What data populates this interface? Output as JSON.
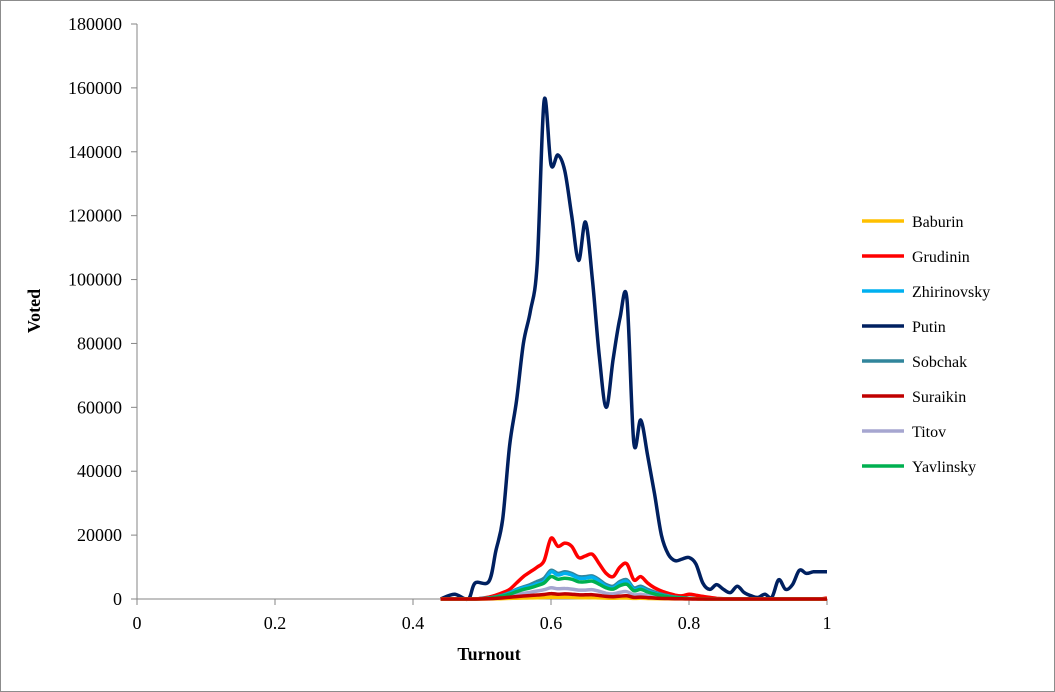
{
  "chart_data": {
    "type": "line",
    "xlabel": "Turnout",
    "ylabel": "Voted",
    "xlim": [
      0,
      1
    ],
    "ylim": [
      0,
      180000
    ],
    "x_ticks": [
      "0",
      "0.2",
      "0.4",
      "0.6",
      "0.8",
      "1"
    ],
    "y_ticks": [
      "0",
      "20000",
      "40000",
      "60000",
      "80000",
      "100000",
      "120000",
      "140000",
      "160000",
      "180000"
    ],
    "grid": false,
    "legend_position": "right",
    "x": [
      0.44,
      0.46,
      0.48,
      0.49,
      0.51,
      0.52,
      0.53,
      0.54,
      0.55,
      0.56,
      0.57,
      0.58,
      0.59,
      0.6,
      0.61,
      0.62,
      0.63,
      0.64,
      0.65,
      0.66,
      0.67,
      0.68,
      0.69,
      0.7,
      0.71,
      0.72,
      0.73,
      0.74,
      0.75,
      0.76,
      0.77,
      0.78,
      0.79,
      0.8,
      0.81,
      0.82,
      0.83,
      0.84,
      0.85,
      0.86,
      0.87,
      0.88,
      0.89,
      0.9,
      0.91,
      0.92,
      0.93,
      0.94,
      0.95,
      0.96,
      0.97,
      0.98,
      0.99,
      1.0
    ],
    "series": [
      {
        "name": "Baburin",
        "color": "#ffc000",
        "values": [
          0,
          0,
          0,
          0,
          20,
          60,
          120,
          200,
          250,
          300,
          360,
          420,
          480,
          560,
          520,
          540,
          500,
          440,
          400,
          420,
          330,
          280,
          220,
          300,
          320,
          200,
          230,
          170,
          130,
          90,
          60,
          40,
          30,
          20,
          20,
          10,
          5,
          0,
          0,
          0,
          0,
          0,
          0,
          0,
          0,
          0,
          0,
          0,
          0,
          0,
          0,
          0,
          0,
          0
        ]
      },
      {
        "name": "Grudinin",
        "color": "#ff0000",
        "values": [
          0,
          0,
          0,
          0,
          600,
          1200,
          2000,
          3000,
          5000,
          7000,
          8500,
          10000,
          12000,
          19000,
          16500,
          17500,
          16500,
          13000,
          13500,
          14000,
          11000,
          8000,
          7000,
          10000,
          11000,
          6000,
          7000,
          5000,
          3500,
          2500,
          1800,
          1200,
          1000,
          1500,
          1200,
          800,
          500,
          200,
          100,
          0,
          0,
          0,
          0,
          0,
          0,
          0,
          0,
          0,
          0,
          0,
          0,
          0,
          0,
          300
        ]
      },
      {
        "name": "Zhirinovsky",
        "color": "#00b0f0",
        "values": [
          0,
          0,
          0,
          0,
          300,
          600,
          1000,
          1800,
          2800,
          3500,
          4000,
          4800,
          5500,
          8500,
          7500,
          8000,
          7500,
          6500,
          6500,
          6800,
          5500,
          4000,
          3500,
          5000,
          5500,
          3000,
          3500,
          2500,
          1800,
          1200,
          800,
          500,
          300,
          200,
          100,
          50,
          0,
          0,
          0,
          0,
          0,
          0,
          0,
          0,
          0,
          0,
          0,
          0,
          0,
          0,
          0,
          0,
          0,
          0
        ]
      },
      {
        "name": "Putin",
        "color": "#002060",
        "values": [
          0,
          1500,
          0,
          5000,
          5500,
          15000,
          25000,
          48000,
          62000,
          80000,
          90000,
          105000,
          156000,
          136000,
          139000,
          134000,
          120000,
          106000,
          118000,
          100000,
          76000,
          60000,
          75000,
          88000,
          94000,
          49000,
          56000,
          45000,
          33000,
          20000,
          14000,
          12000,
          12500,
          13000,
          11000,
          5000,
          3000,
          4500,
          3000,
          2000,
          4000,
          2000,
          1000,
          500,
          1500,
          500,
          6000,
          3000,
          4500,
          9000,
          8000,
          8500,
          8500,
          8500
        ]
      },
      {
        "name": "Sobchak",
        "color": "#31859c",
        "values": [
          0,
          0,
          0,
          0,
          300,
          700,
          1200,
          2000,
          3000,
          3800,
          4500,
          5500,
          6500,
          9000,
          8000,
          8500,
          8000,
          7000,
          7000,
          7200,
          6000,
          4500,
          4000,
          5500,
          6000,
          3500,
          4000,
          3000,
          2200,
          1500,
          1000,
          600,
          400,
          200,
          100,
          50,
          0,
          0,
          0,
          0,
          0,
          0,
          0,
          0,
          0,
          0,
          0,
          0,
          0,
          0,
          0,
          0,
          0,
          0
        ]
      },
      {
        "name": "Suraikin",
        "color": "#c00000",
        "values": [
          0,
          0,
          0,
          0,
          100,
          200,
          350,
          550,
          750,
          950,
          1100,
          1250,
          1400,
          1700,
          1500,
          1600,
          1500,
          1300,
          1300,
          1350,
          1100,
          800,
          700,
          900,
          1000,
          500,
          600,
          450,
          300,
          200,
          150,
          100,
          60,
          30,
          10,
          0,
          0,
          0,
          0,
          0,
          0,
          0,
          0,
          0,
          0,
          0,
          0,
          0,
          0,
          0,
          0,
          0,
          0,
          0
        ]
      },
      {
        "name": "Titov",
        "color": "#a6a6d0",
        "values": [
          0,
          0,
          0,
          0,
          150,
          350,
          600,
          1000,
          1400,
          1800,
          2100,
          2500,
          2900,
          3500,
          3200,
          3300,
          3100,
          2800,
          2800,
          2900,
          2400,
          1800,
          1600,
          2100,
          2300,
          1300,
          1500,
          1100,
          800,
          550,
          350,
          200,
          120,
          60,
          20,
          0,
          0,
          0,
          0,
          0,
          0,
          0,
          0,
          0,
          0,
          0,
          0,
          0,
          0,
          0,
          0,
          0,
          0,
          0
        ]
      },
      {
        "name": "Yavlinsky",
        "color": "#00b050",
        "values": [
          0,
          0,
          0,
          0,
          250,
          550,
          900,
          1500,
          2300,
          3000,
          3500,
          4200,
          5000,
          7000,
          6200,
          6500,
          6200,
          5400,
          5400,
          5600,
          4600,
          3500,
          3100,
          4200,
          4600,
          2600,
          3000,
          2200,
          1600,
          1100,
          700,
          450,
          300,
          150,
          80,
          30,
          0,
          0,
          0,
          0,
          0,
          0,
          0,
          0,
          0,
          0,
          0,
          0,
          0,
          0,
          0,
          0,
          0,
          0
        ]
      }
    ]
  }
}
